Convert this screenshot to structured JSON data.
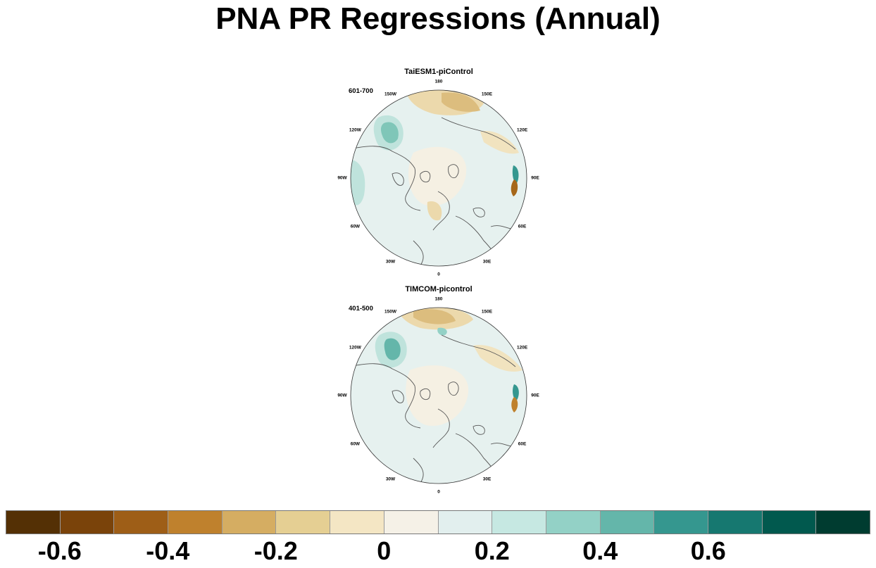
{
  "title": "PNA PR Regressions (Annual)",
  "panels": [
    {
      "title": "TaiESM1-piControl",
      "period": "601-700",
      "lon_labels": [
        "180",
        "150E",
        "120E",
        "90E",
        "60E",
        "30E",
        "0",
        "30W",
        "60W",
        "90W",
        "120W",
        "150W"
      ]
    },
    {
      "title": "TIMCOM-picontrol",
      "period": "401-500",
      "lon_labels": [
        "180",
        "150E",
        "120E",
        "90E",
        "60E",
        "30E",
        "0",
        "30W",
        "60W",
        "90W",
        "120W",
        "150W"
      ]
    }
  ],
  "colorbar": {
    "colors": [
      "#543005",
      "#7a430a",
      "#9e5e17",
      "#bf812d",
      "#d5ad62",
      "#e5cf93",
      "#f4e6c4",
      "#f5f1e7",
      "#e2efee",
      "#c6e8e2",
      "#93d1c6",
      "#64b6aa",
      "#35978f",
      "#167870",
      "#01594e",
      "#003c30"
    ],
    "tick_labels": [
      "-0.6",
      "-0.4",
      "-0.2",
      "0",
      "0.2",
      "0.4",
      "0.6"
    ]
  }
}
